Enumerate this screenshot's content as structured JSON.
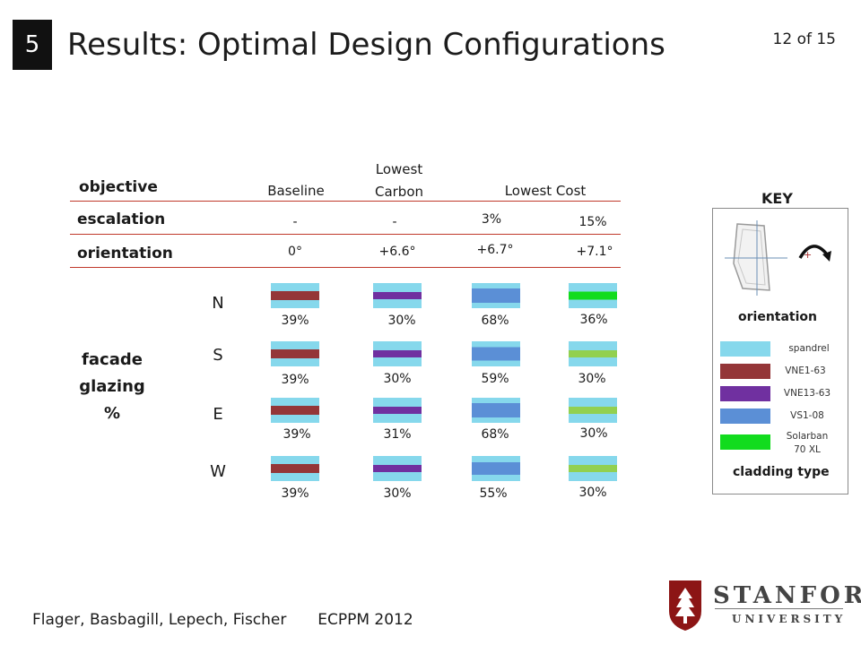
{
  "slide": {
    "section_number": "5",
    "title": "Results: Optimal Design Configurations",
    "page": "12 of 15"
  },
  "table": {
    "row_labels": {
      "objective": "objective",
      "escalation": "escalation",
      "orientation": "orientation",
      "facade": [
        "facade",
        "glazing",
        "%"
      ]
    },
    "headers": {
      "baseline": "Baseline",
      "lowest_carbon": [
        "Lowest",
        "Carbon"
      ],
      "lowest_cost": "Lowest Cost"
    },
    "escalation": [
      "-",
      "-",
      "3%",
      "15%"
    ],
    "orientation": [
      "0°",
      "+6.6°",
      "+6.7°",
      "+7.1°"
    ],
    "directions": [
      "N",
      "S",
      "E",
      "W"
    ],
    "glazing": [
      {
        "dir": "N",
        "cells": [
          {
            "pct": "39%",
            "cladding": "VNE1-63"
          },
          {
            "pct": "30%",
            "cladding": "VNE13-63"
          },
          {
            "pct": "68%",
            "cladding": "VS1-08"
          },
          {
            "pct": "36%",
            "cladding": "Solarban 70 XL"
          }
        ]
      },
      {
        "dir": "S",
        "cells": [
          {
            "pct": "39%",
            "cladding": "VNE1-63"
          },
          {
            "pct": "30%",
            "cladding": "VNE13-63"
          },
          {
            "pct": "59%",
            "cladding": "VS1-08"
          },
          {
            "pct": "30%",
            "cladding": "Solarban 70 XL"
          }
        ]
      },
      {
        "dir": "E",
        "cells": [
          {
            "pct": "39%",
            "cladding": "VNE1-63"
          },
          {
            "pct": "31%",
            "cladding": "VNE13-63"
          },
          {
            "pct": "68%",
            "cladding": "VS1-08"
          },
          {
            "pct": "30%",
            "cladding": "Solarban 70 XL"
          }
        ]
      },
      {
        "dir": "W",
        "cells": [
          {
            "pct": "39%",
            "cladding": "VNE1-63"
          },
          {
            "pct": "30%",
            "cladding": "VNE13-63"
          },
          {
            "pct": "55%",
            "cladding": "VS1-08"
          },
          {
            "pct": "30%",
            "cladding": "Solarban 70 XL"
          }
        ]
      }
    ]
  },
  "key": {
    "title": "KEY",
    "orientation_label": "orientation",
    "plus_sign": "+",
    "cladding_label": "cladding type",
    "legend": [
      {
        "name": "spandrel",
        "color": "#86d8ec"
      },
      {
        "name": "VNE1-63",
        "color": "#943638"
      },
      {
        "name": "VNE13-63",
        "color": "#7030a0"
      },
      {
        "name": "VS1-08",
        "color": "#5b8fd6"
      },
      {
        "name": "Solarban\n70 XL",
        "color": "#12dc1e"
      }
    ]
  },
  "colors": {
    "spandrel": "#86d8ec",
    "VNE1-63": "#943638",
    "VNE13-63": "#7030a0",
    "VS1-08": "#5b8fd6",
    "Solarban_N": "#12dc1e",
    "Solarban_other": "#92d050",
    "rule_line": "#c0392b"
  },
  "footer": {
    "authors": "Flager, Basbagill, Lepech, Fischer",
    "conference": "ECPPM 2012"
  },
  "logo": {
    "line1": "STANFORD",
    "line2": "UNIVERSITY"
  }
}
